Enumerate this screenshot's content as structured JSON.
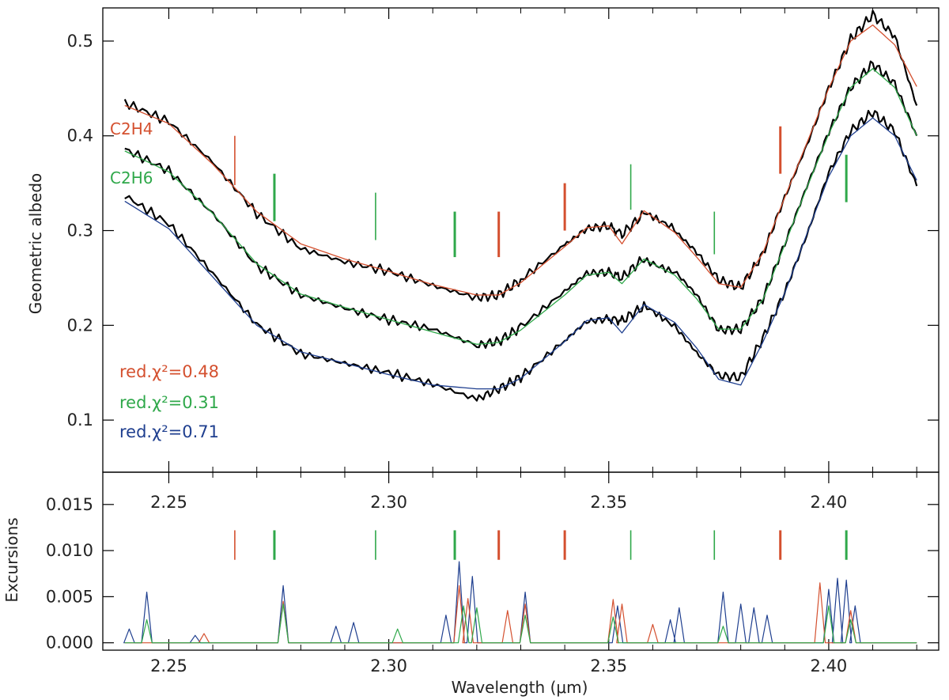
{
  "chart_data": [
    {
      "panel": "top",
      "type": "line",
      "xlabel": "",
      "ylabel": "Geometric albedo",
      "xlim": [
        2.235,
        2.425
      ],
      "ylim": [
        0.045,
        0.535
      ],
      "xticks": [
        "2.25",
        "2.30",
        "2.35",
        "2.40"
      ],
      "yticks": [
        "0.1",
        "0.2",
        "0.3",
        "0.4",
        "0.5"
      ],
      "xtick_values": [
        2.25,
        2.3,
        2.35,
        2.4
      ],
      "ytick_values": [
        0.1,
        0.2,
        0.3,
        0.4,
        0.5
      ],
      "annotations": [
        {
          "text": "C2H4",
          "color": "#d4502f"
        },
        {
          "text": "C2H6",
          "color": "#2fa84a"
        },
        {
          "text": "red.χ²=0.48",
          "color": "#d4502f"
        },
        {
          "text": "red.χ²=0.31",
          "color": "#2fa84a"
        },
        {
          "text": "red.χ²=0.71",
          "color": "#1f3f8f"
        }
      ],
      "x": [
        2.24,
        2.25,
        2.26,
        2.27,
        2.28,
        2.29,
        2.3,
        2.31,
        2.32,
        2.325,
        2.33,
        2.34,
        2.345,
        2.35,
        2.353,
        2.358,
        2.365,
        2.37,
        2.375,
        2.38,
        2.385,
        2.39,
        2.395,
        2.4,
        2.405,
        2.41,
        2.415,
        2.42
      ],
      "series": [
        {
          "role": "observed",
          "color": "#000000",
          "values": [
            0.435,
            0.415,
            0.372,
            0.318,
            0.281,
            0.267,
            0.257,
            0.242,
            0.229,
            0.232,
            0.248,
            0.285,
            0.302,
            0.305,
            0.296,
            0.318,
            0.3,
            0.277,
            0.248,
            0.24,
            0.275,
            0.335,
            0.39,
            0.45,
            0.502,
            0.528,
            0.505,
            0.432
          ]
        },
        {
          "role": "fit",
          "color": "#d4502f",
          "values": [
            0.432,
            0.413,
            0.37,
            0.32,
            0.286,
            0.27,
            0.257,
            0.243,
            0.232,
            0.232,
            0.245,
            0.283,
            0.303,
            0.305,
            0.286,
            0.321,
            0.298,
            0.272,
            0.244,
            0.24,
            0.276,
            0.335,
            0.392,
            0.45,
            0.5,
            0.517,
            0.496,
            0.452
          ]
        },
        {
          "role": "observed",
          "color": "#000000",
          "values": [
            0.386,
            0.363,
            0.318,
            0.263,
            0.232,
            0.218,
            0.206,
            0.196,
            0.179,
            0.183,
            0.198,
            0.236,
            0.255,
            0.256,
            0.25,
            0.271,
            0.257,
            0.232,
            0.195,
            0.196,
            0.228,
            0.286,
            0.346,
            0.404,
            0.451,
            0.476,
            0.455,
            0.4
          ]
        },
        {
          "role": "fit",
          "color": "#2fa84a",
          "values": [
            0.384,
            0.362,
            0.318,
            0.265,
            0.233,
            0.219,
            0.206,
            0.193,
            0.18,
            0.182,
            0.195,
            0.232,
            0.253,
            0.256,
            0.244,
            0.27,
            0.253,
            0.228,
            0.196,
            0.196,
            0.227,
            0.285,
            0.345,
            0.402,
            0.451,
            0.471,
            0.451,
            0.4
          ]
        },
        {
          "role": "observed",
          "color": "#000000",
          "values": [
            0.337,
            0.307,
            0.255,
            0.201,
            0.17,
            0.16,
            0.15,
            0.138,
            0.122,
            0.133,
            0.145,
            0.184,
            0.204,
            0.207,
            0.205,
            0.22,
            0.199,
            0.171,
            0.147,
            0.145,
            0.186,
            0.235,
            0.295,
            0.361,
            0.405,
            0.425,
            0.405,
            0.347
          ]
        },
        {
          "role": "fit",
          "color": "#1f3f8f",
          "values": [
            0.331,
            0.302,
            0.251,
            0.2,
            0.172,
            0.16,
            0.148,
            0.137,
            0.133,
            0.133,
            0.144,
            0.183,
            0.205,
            0.208,
            0.192,
            0.222,
            0.203,
            0.176,
            0.143,
            0.137,
            0.182,
            0.234,
            0.296,
            0.357,
            0.4,
            0.419,
            0.4,
            0.353
          ]
        }
      ],
      "band_markers": [
        {
          "x": 2.265,
          "y": [
            0.348,
            0.4
          ],
          "color": "#d4502f",
          "weight": "thin"
        },
        {
          "x": 2.274,
          "y": [
            0.31,
            0.36
          ],
          "color": "#2fa84a",
          "weight": "thick"
        },
        {
          "x": 2.297,
          "y": [
            0.29,
            0.34
          ],
          "color": "#2fa84a",
          "weight": "thin"
        },
        {
          "x": 2.315,
          "y": [
            0.272,
            0.32
          ],
          "color": "#2fa84a",
          "weight": "thick"
        },
        {
          "x": 2.325,
          "y": [
            0.272,
            0.32
          ],
          "color": "#d4502f",
          "weight": "thick"
        },
        {
          "x": 2.34,
          "y": [
            0.3,
            0.35
          ],
          "color": "#d4502f",
          "weight": "thick"
        },
        {
          "x": 2.355,
          "y": [
            0.322,
            0.37
          ],
          "color": "#2fa84a",
          "weight": "thin"
        },
        {
          "x": 2.374,
          "y": [
            0.275,
            0.32
          ],
          "color": "#2fa84a",
          "weight": "thin"
        },
        {
          "x": 2.389,
          "y": [
            0.36,
            0.41
          ],
          "color": "#d4502f",
          "weight": "thick"
        },
        {
          "x": 2.404,
          "y": [
            0.33,
            0.38
          ],
          "color": "#2fa84a",
          "weight": "thick"
        }
      ]
    },
    {
      "panel": "bottom",
      "type": "line",
      "xlabel": "Wavelength (μm)",
      "ylabel": "Excursions",
      "xlim": [
        2.235,
        2.425
      ],
      "ylim": [
        -0.0008,
        0.0185
      ],
      "xticks": [
        "2.25",
        "2.30",
        "2.35",
        "2.40"
      ],
      "yticks": [
        "0.000",
        "0.005",
        "0.010",
        "0.015"
      ],
      "xtick_values": [
        2.25,
        2.3,
        2.35,
        2.4
      ],
      "ytick_values": [
        0.0,
        0.005,
        0.01,
        0.015
      ],
      "band_markers": [
        {
          "x": 2.265,
          "y": [
            0.009,
            0.0122
          ],
          "color": "#d4502f",
          "weight": "thin"
        },
        {
          "x": 2.274,
          "y": [
            0.009,
            0.0122
          ],
          "color": "#2fa84a",
          "weight": "thick"
        },
        {
          "x": 2.297,
          "y": [
            0.009,
            0.0122
          ],
          "color": "#2fa84a",
          "weight": "thin"
        },
        {
          "x": 2.315,
          "y": [
            0.009,
            0.0122
          ],
          "color": "#2fa84a",
          "weight": "thick"
        },
        {
          "x": 2.325,
          "y": [
            0.009,
            0.0122
          ],
          "color": "#d4502f",
          "weight": "thick"
        },
        {
          "x": 2.34,
          "y": [
            0.009,
            0.0122
          ],
          "color": "#d4502f",
          "weight": "thick"
        },
        {
          "x": 2.355,
          "y": [
            0.009,
            0.0122
          ],
          "color": "#2fa84a",
          "weight": "thin"
        },
        {
          "x": 2.374,
          "y": [
            0.009,
            0.0122
          ],
          "color": "#2fa84a",
          "weight": "thin"
        },
        {
          "x": 2.389,
          "y": [
            0.009,
            0.0122
          ],
          "color": "#d4502f",
          "weight": "thick"
        },
        {
          "x": 2.404,
          "y": [
            0.009,
            0.0122
          ],
          "color": "#2fa84a",
          "weight": "thick"
        }
      ],
      "series": [
        {
          "color": "#1f3f8f",
          "spikes": [
            [
              2.241,
              0.0015
            ],
            [
              2.245,
              0.0055
            ],
            [
              2.256,
              0.0008
            ],
            [
              2.276,
              0.0062
            ],
            [
              2.288,
              0.0018
            ],
            [
              2.292,
              0.0022
            ],
            [
              2.313,
              0.003
            ],
            [
              2.316,
              0.0088
            ],
            [
              2.319,
              0.0072
            ],
            [
              2.331,
              0.0055
            ],
            [
              2.352,
              0.004
            ],
            [
              2.364,
              0.0025
            ],
            [
              2.366,
              0.0038
            ],
            [
              2.376,
              0.0055
            ],
            [
              2.38,
              0.0042
            ],
            [
              2.383,
              0.0038
            ],
            [
              2.386,
              0.003
            ],
            [
              2.4,
              0.0058
            ],
            [
              2.402,
              0.007
            ],
            [
              2.404,
              0.0068
            ],
            [
              2.406,
              0.004
            ]
          ]
        },
        {
          "color": "#d4502f",
          "spikes": [
            [
              2.258,
              0.001
            ],
            [
              2.276,
              0.0045
            ],
            [
              2.316,
              0.0062
            ],
            [
              2.318,
              0.0048
            ],
            [
              2.327,
              0.0035
            ],
            [
              2.331,
              0.0042
            ],
            [
              2.351,
              0.0047
            ],
            [
              2.353,
              0.0042
            ],
            [
              2.36,
              0.002
            ],
            [
              2.398,
              0.0065
            ],
            [
              2.405,
              0.0035
            ]
          ]
        },
        {
          "color": "#2fa84a",
          "spikes": [
            [
              2.245,
              0.0025
            ],
            [
              2.276,
              0.0042
            ],
            [
              2.302,
              0.0015
            ],
            [
              2.317,
              0.004
            ],
            [
              2.32,
              0.0038
            ],
            [
              2.331,
              0.003
            ],
            [
              2.351,
              0.0028
            ],
            [
              2.376,
              0.0018
            ],
            [
              2.4,
              0.004
            ],
            [
              2.405,
              0.0025
            ]
          ]
        }
      ]
    }
  ]
}
